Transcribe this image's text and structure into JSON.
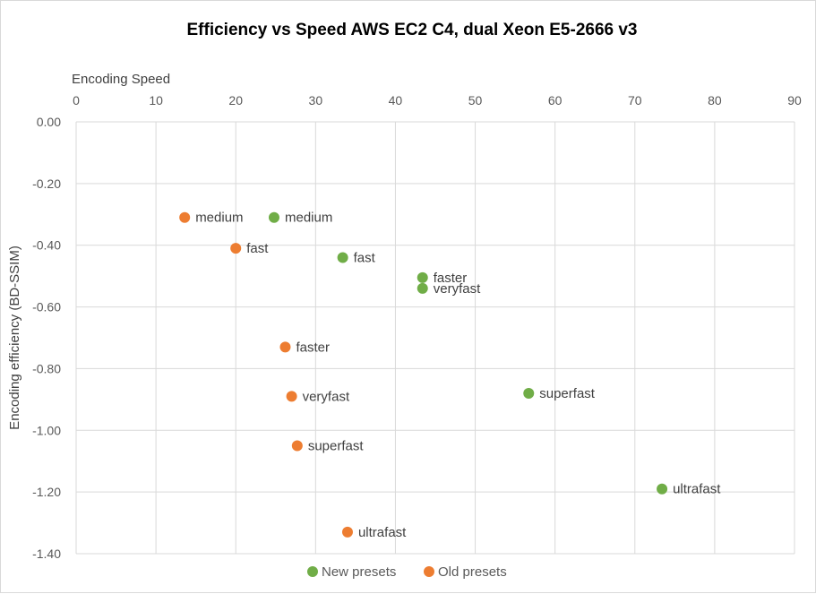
{
  "chart_data": {
    "type": "scatter",
    "title": "Efficiency vs Speed AWS EC2 C4, dual Xeon E5-2666 v3",
    "xlabel": "Encoding Speed",
    "ylabel": "Encoding efficiency  (BD-SSIM)",
    "xlim": [
      0,
      90
    ],
    "ylim": [
      -1.4,
      0
    ],
    "x_ticks": [
      "0",
      "10",
      "20",
      "30",
      "40",
      "50",
      "60",
      "70",
      "80",
      "90"
    ],
    "y_ticks": [
      "0.00",
      "-0.20",
      "-0.40",
      "-0.60",
      "-0.80",
      "-1.00",
      "-1.20",
      "-1.40"
    ],
    "x_axis_position": "top",
    "grid": true,
    "legend_position": "bottom",
    "series": [
      {
        "name": "New presets",
        "color": "#70ad47",
        "points": [
          {
            "label": "medium",
            "x": 24.8,
            "y": -0.31
          },
          {
            "label": "fast",
            "x": 33.4,
            "y": -0.44
          },
          {
            "label": "faster",
            "x": 43.4,
            "y": -0.505
          },
          {
            "label": "veryfast",
            "x": 43.4,
            "y": -0.54
          },
          {
            "label": "superfast",
            "x": 56.7,
            "y": -0.88
          },
          {
            "label": "ultrafast",
            "x": 73.4,
            "y": -1.19
          }
        ]
      },
      {
        "name": "Old presets",
        "color": "#ed7d31",
        "points": [
          {
            "label": "medium",
            "x": 13.6,
            "y": -0.31
          },
          {
            "label": "fast",
            "x": 20.0,
            "y": -0.41
          },
          {
            "label": "faster",
            "x": 26.2,
            "y": -0.73
          },
          {
            "label": "veryfast",
            "x": 27.0,
            "y": -0.89
          },
          {
            "label": "superfast",
            "x": 27.7,
            "y": -1.05
          },
          {
            "label": "ultrafast",
            "x": 34.0,
            "y": -1.33
          }
        ]
      }
    ]
  }
}
